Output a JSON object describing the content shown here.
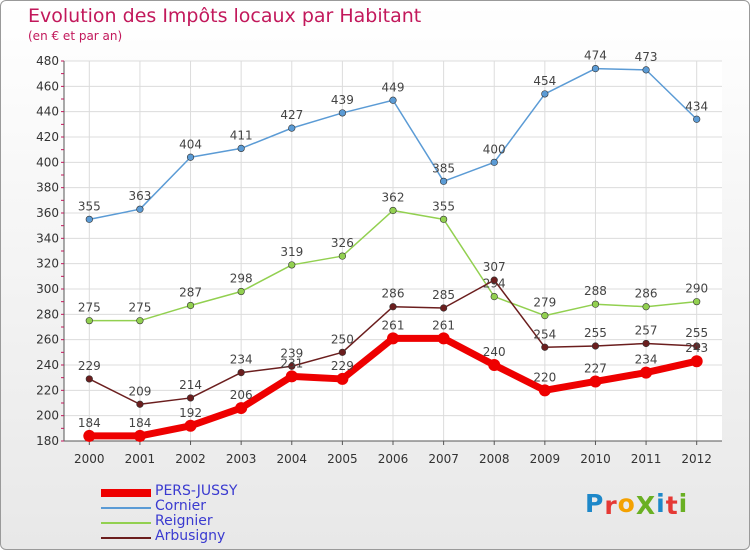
{
  "title": "Evolution des Impôts locaux par Habitant",
  "subtitle": "(en € et par an)",
  "logo": {
    "text": "ProXiti",
    "colors": [
      "#1e88c9",
      "#e53935",
      "#f4a100",
      "#6ab023",
      "#1e88c9",
      "#e53935",
      "#6ab023"
    ]
  },
  "chart_data": {
    "type": "line",
    "title": "Evolution des Impôts locaux par Habitant",
    "subtitle": "(en € et par an)",
    "xlabel": "",
    "ylabel": "",
    "x": [
      "2000",
      "2001",
      "2002",
      "2003",
      "2004",
      "2005",
      "2006",
      "2007",
      "2008",
      "2009",
      "2010",
      "2011",
      "2012"
    ],
    "ylim": [
      180,
      480
    ],
    "yticks": [
      180,
      200,
      220,
      240,
      260,
      280,
      300,
      320,
      340,
      360,
      380,
      400,
      420,
      440,
      460,
      480
    ],
    "grid": true,
    "legend_position": "bottom-left",
    "series": [
      {
        "name": "PERS-JUSSY",
        "color": "#ee0000",
        "width": 7,
        "values": [
          184,
          184,
          192,
          206,
          231,
          229,
          261,
          261,
          240,
          220,
          227,
          234,
          243
        ]
      },
      {
        "name": "Cornier",
        "color": "#5b9bd5",
        "width": 1.5,
        "values": [
          355,
          363,
          404,
          411,
          427,
          439,
          449,
          385,
          400,
          454,
          474,
          473,
          434
        ]
      },
      {
        "name": "Reignier",
        "color": "#92d050",
        "width": 1.5,
        "values": [
          275,
          275,
          287,
          298,
          319,
          326,
          362,
          355,
          294,
          279,
          288,
          286,
          290
        ]
      },
      {
        "name": "Arbusigny",
        "color": "#6b1e1e",
        "width": 1.5,
        "values": [
          229,
          209,
          214,
          234,
          239,
          250,
          286,
          285,
          307,
          254,
          255,
          257,
          255
        ]
      }
    ]
  }
}
